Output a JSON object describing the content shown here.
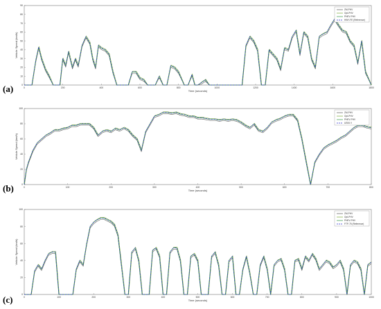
{
  "colors": {
    "series": [
      "#555555",
      "#77aa33",
      "#339944",
      "#3333cc"
    ],
    "frame": "#777777"
  },
  "chart_data": [
    {
      "panel_label": "(a)",
      "type": "line",
      "xlabel": "Time (seconds)",
      "ylabel": "Vehicle Speed (km/h)",
      "xlim": [
        0,
        1800
      ],
      "ylim": [
        0,
        90
      ],
      "xticks": [
        "0",
        "200",
        "400",
        "600",
        "800",
        "1000",
        "1200",
        "1400",
        "1600",
        "1800"
      ],
      "yticks": [
        "0",
        "10",
        "20",
        "30",
        "40",
        "50",
        "60",
        "70",
        "80",
        "90"
      ],
      "legend_position": "top-right",
      "series": [
        {
          "name": "ZM-PHV",
          "style": "solid"
        },
        {
          "name": "Opt-PHV",
          "style": "solid"
        },
        {
          "name": "PHEV-PHV",
          "style": "solid"
        },
        {
          "name": "HWY-FE (Reference)",
          "style": "dashed"
        }
      ],
      "x": [
        0,
        20,
        40,
        60,
        75,
        90,
        110,
        130,
        150,
        170,
        185,
        200,
        215,
        230,
        250,
        265,
        280,
        300,
        320,
        340,
        355,
        370,
        385,
        400,
        420,
        440,
        460,
        480,
        500,
        520,
        540,
        560,
        580,
        600,
        620,
        640,
        660,
        680,
        700,
        720,
        740,
        760,
        780,
        800,
        830,
        850,
        870,
        885,
        900,
        920,
        940,
        960,
        980,
        1000,
        1020,
        1035,
        1050,
        1070,
        1090,
        1110,
        1130,
        1150,
        1170,
        1190,
        1210,
        1230,
        1250,
        1270,
        1290,
        1310,
        1330,
        1350,
        1370,
        1390,
        1410,
        1430,
        1450,
        1470,
        1490,
        1510,
        1530,
        1550,
        1570,
        1590,
        1610,
        1630,
        1650,
        1670,
        1690,
        1710,
        1730,
        1750,
        1770,
        1800
      ],
      "y": [
        0,
        0,
        0,
        28,
        43,
        30,
        18,
        10,
        0,
        0,
        0,
        30,
        22,
        38,
        20,
        30,
        22,
        45,
        55,
        48,
        30,
        20,
        45,
        42,
        40,
        35,
        15,
        0,
        0,
        0,
        0,
        15,
        15,
        8,
        6,
        0,
        0,
        0,
        10,
        0,
        0,
        22,
        20,
        15,
        0,
        0,
        12,
        0,
        0,
        3,
        6,
        0,
        0,
        0,
        0,
        0,
        0,
        0,
        0,
        0,
        0,
        45,
        55,
        50,
        40,
        0,
        0,
        40,
        35,
        30,
        18,
        42,
        40,
        55,
        62,
        35,
        60,
        55,
        30,
        20,
        55,
        58,
        60,
        68,
        75,
        68,
        62,
        60,
        50,
        45,
        25,
        50,
        15,
        0
      ]
    },
    {
      "panel_label": "(b)",
      "type": "line",
      "xlabel": "Time (seconds)",
      "ylabel": "Vehicle Speed (km/h)",
      "xlim": [
        0,
        800
      ],
      "ylim": [
        0,
        100
      ],
      "xticks": [
        "0",
        "100",
        "200",
        "300",
        "400",
        "500",
        "600",
        "700",
        "800"
      ],
      "yticks": [
        "0",
        "20",
        "40",
        "60",
        "80",
        "100"
      ],
      "legend_position": "top-right",
      "series": [
        {
          "name": "ZM-PHV",
          "style": "solid"
        },
        {
          "name": "Opt-PHV",
          "style": "solid"
        },
        {
          "name": "PHEV-PHV",
          "style": "solid"
        },
        {
          "name": "US06 V",
          "style": "dashed"
        }
      ],
      "x": [
        0,
        5,
        10,
        20,
        30,
        40,
        50,
        60,
        70,
        80,
        90,
        100,
        110,
        120,
        130,
        140,
        150,
        160,
        170,
        180,
        190,
        200,
        210,
        220,
        230,
        240,
        250,
        260,
        270,
        280,
        290,
        300,
        310,
        320,
        330,
        340,
        350,
        360,
        370,
        380,
        390,
        400,
        410,
        420,
        430,
        440,
        450,
        460,
        470,
        480,
        490,
        500,
        510,
        520,
        530,
        540,
        550,
        560,
        570,
        580,
        590,
        600,
        610,
        620,
        630,
        640,
        650,
        660,
        670,
        680,
        690,
        700,
        710,
        720,
        730,
        740,
        750,
        760,
        770,
        780,
        790,
        800
      ],
      "y": [
        0,
        20,
        30,
        45,
        55,
        60,
        65,
        68,
        72,
        72,
        74,
        75,
        78,
        78,
        80,
        80,
        80,
        75,
        65,
        70,
        72,
        70,
        74,
        72,
        75,
        72,
        65,
        60,
        45,
        70,
        80,
        90,
        92,
        95,
        95,
        94,
        95,
        93,
        92,
        90,
        90,
        88,
        88,
        87,
        86,
        86,
        85,
        86,
        85,
        86,
        85,
        82,
        78,
        75,
        80,
        72,
        70,
        75,
        82,
        85,
        87,
        90,
        92,
        92,
        85,
        60,
        30,
        0,
        30,
        40,
        48,
        52,
        55,
        58,
        62,
        65,
        70,
        75,
        78,
        78,
        76,
        75
      ]
    },
    {
      "panel_label": "(c)",
      "type": "line",
      "xlabel": "Time (seconds)",
      "ylabel": "Vehicle Speed (km/h)",
      "xlim": [
        0,
        1000
      ],
      "ylim": [
        0,
        100
      ],
      "xticks": [
        "0",
        "100",
        "200",
        "300",
        "400",
        "500",
        "600",
        "700",
        "800",
        "900",
        "1000"
      ],
      "yticks": [
        "0",
        "20",
        "40",
        "60",
        "80",
        "100"
      ],
      "legend_position": "top-right",
      "series": [
        {
          "name": "ZM-PHV",
          "style": "solid"
        },
        {
          "name": "Opt-PHV",
          "style": "solid"
        },
        {
          "name": "PHEV-PHV",
          "style": "solid"
        },
        {
          "name": "FTP-75 (Reference)",
          "style": "dashed"
        }
      ],
      "x": [
        0,
        10,
        20,
        30,
        40,
        50,
        60,
        70,
        80,
        90,
        100,
        110,
        120,
        130,
        140,
        150,
        160,
        170,
        180,
        190,
        200,
        210,
        220,
        230,
        240,
        250,
        260,
        270,
        280,
        290,
        300,
        310,
        320,
        330,
        340,
        350,
        360,
        370,
        380,
        390,
        400,
        410,
        420,
        430,
        440,
        450,
        460,
        470,
        480,
        490,
        500,
        510,
        520,
        530,
        540,
        550,
        560,
        570,
        580,
        590,
        600,
        610,
        620,
        630,
        640,
        650,
        660,
        670,
        680,
        690,
        700,
        710,
        720,
        730,
        740,
        750,
        760,
        770,
        780,
        790,
        800,
        810,
        820,
        830,
        840,
        850,
        860,
        870,
        880,
        890,
        900,
        910,
        920,
        930,
        940,
        950,
        960,
        970,
        980,
        990,
        1000
      ],
      "y": [
        0,
        0,
        0,
        28,
        35,
        30,
        40,
        48,
        50,
        50,
        0,
        0,
        0,
        0,
        0,
        30,
        40,
        35,
        60,
        80,
        85,
        88,
        90,
        90,
        88,
        86,
        82,
        70,
        35,
        0,
        0,
        50,
        55,
        40,
        0,
        0,
        0,
        52,
        55,
        45,
        0,
        0,
        50,
        55,
        55,
        40,
        0,
        0,
        45,
        48,
        40,
        0,
        0,
        0,
        45,
        50,
        35,
        0,
        0,
        40,
        45,
        0,
        0,
        30,
        45,
        25,
        0,
        0,
        35,
        45,
        30,
        0,
        35,
        40,
        42,
        30,
        0,
        0,
        40,
        42,
        30,
        45,
        40,
        48,
        42,
        30,
        35,
        40,
        38,
        32,
        35,
        40,
        30,
        0,
        35,
        40,
        38,
        30,
        0,
        35,
        38
      ]
    }
  ]
}
